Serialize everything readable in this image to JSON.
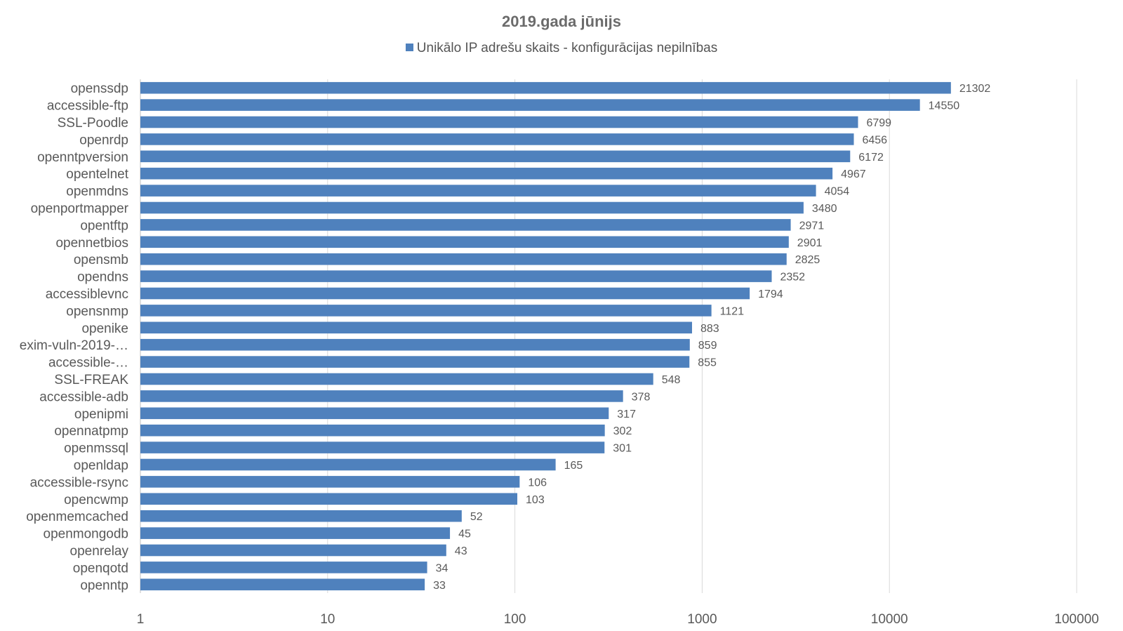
{
  "chart_data": {
    "type": "bar",
    "orientation": "horizontal",
    "title": "2019.gada jūnijs",
    "legend": {
      "position": "top",
      "entries": [
        "Unikālo IP adrešu skaits  -  konfigurācijas nepilnības"
      ]
    },
    "x_scale": "log",
    "xlim": [
      1,
      100000
    ],
    "x_ticks": [
      1,
      10,
      100,
      1000,
      10000,
      100000
    ],
    "x_tick_labels": [
      "1",
      "10",
      "100",
      "1000",
      "10000",
      "100000"
    ],
    "grid": true,
    "categories": [
      "openssdp",
      "accessible-ftp",
      "SSL-Poodle",
      "openrdp",
      "openntpversion",
      "opentelnet",
      "openmdns",
      "openportmapper",
      "opentftp",
      "opennetbios",
      "opensmb",
      "opendns",
      "accessiblevnc",
      "opensnmp",
      "openike",
      "exim-vuln-2019-…",
      "accessible-…",
      "SSL-FREAK",
      "accessible-adb",
      "openipmi",
      "opennatpmp",
      "openmssql",
      "openldap",
      "accessible-rsync",
      "opencwmp",
      "openmemcached",
      "openmongodb",
      "openrelay",
      "openqotd",
      "openntp"
    ],
    "series": [
      {
        "name": "Unikālo IP adrešu skaits  -  konfigurācijas nepilnības",
        "color": "#4f81bd",
        "values": [
          21302,
          14550,
          6799,
          6456,
          6172,
          4967,
          4054,
          3480,
          2971,
          2901,
          2825,
          2352,
          1794,
          1121,
          883,
          859,
          855,
          548,
          378,
          317,
          302,
          301,
          165,
          106,
          103,
          52,
          45,
          43,
          34,
          33
        ]
      }
    ]
  },
  "colors": {
    "bar": "#4f81bd",
    "grid": "#d9d9d9",
    "text": "#595959",
    "title": "#6b6b6b"
  }
}
